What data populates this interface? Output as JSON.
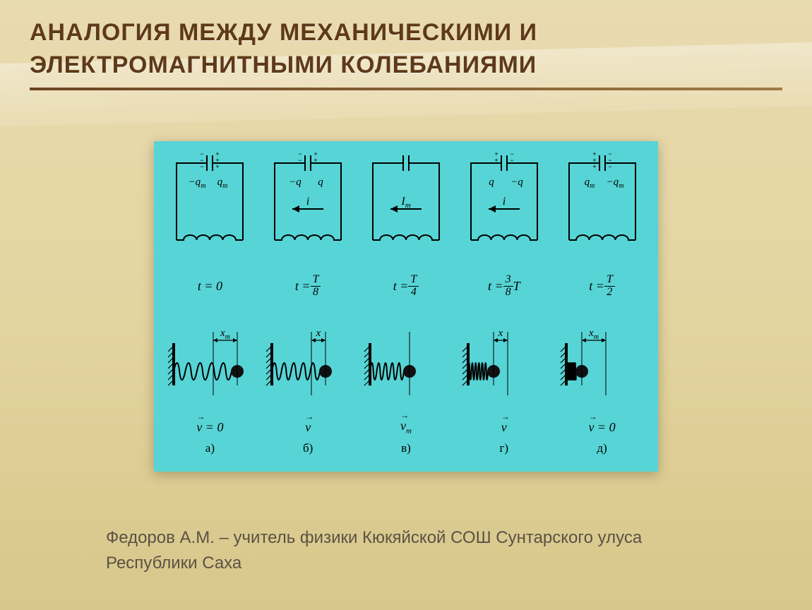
{
  "slide": {
    "title": "АНАЛОГИЯ МЕЖДУ МЕХАНИЧЕСКИМИ И ЭЛЕКТРОМАГНИТНЫМИ КОЛЕБАНИЯМИ",
    "footer": "Федоров А.М. – учитель физики Кюкяйской СОШ Сунтарского улуса Республики Саха"
  },
  "diagram": {
    "background_color": "#57d4d5",
    "stroke_color": "#000000",
    "stroke_width": 2,
    "font_family": "Georgia, serif",
    "columns": [
      {
        "letter": "а)",
        "circuit": {
          "left_charge": "−q",
          "left_sub": "m",
          "right_charge": "q",
          "right_sub": "m",
          "left_signs": "---",
          "right_signs": "+++",
          "current_label": "",
          "arrow": false
        },
        "time_label": {
          "prefix": "t = ",
          "plain": "0"
        },
        "spring": {
          "coils": 5,
          "extension": 34,
          "displacement_label": "x",
          "displacement_sub": "m"
        },
        "velocity_label": {
          "text": "v",
          "sub": "",
          "suffix": " = 0",
          "over_arrow": true
        }
      },
      {
        "letter": "б)",
        "circuit": {
          "left_charge": "−q",
          "left_sub": "",
          "right_charge": "q",
          "right_sub": "",
          "left_signs": "--",
          "right_signs": "++",
          "current_label": "i",
          "arrow": true
        },
        "time_label": {
          "prefix": "t = ",
          "frac_num": "T",
          "frac_den": "8"
        },
        "spring": {
          "coils": 5,
          "extension": 20,
          "displacement_label": "x",
          "displacement_sub": ""
        },
        "velocity_label": {
          "text": "v",
          "sub": "",
          "suffix": "",
          "over_arrow": true
        }
      },
      {
        "letter": "в)",
        "circuit": {
          "left_charge": "",
          "left_sub": "",
          "right_charge": "",
          "right_sub": "",
          "left_signs": "",
          "right_signs": "",
          "current_label": "I",
          "current_sub": "m",
          "arrow": true
        },
        "time_label": {
          "prefix": "t = ",
          "frac_num": "T",
          "frac_den": "4"
        },
        "spring": {
          "coils": 5,
          "extension": 0,
          "displacement_label": "",
          "displacement_sub": ""
        },
        "velocity_label": {
          "text": "v",
          "sub": "m",
          "suffix": "",
          "over_arrow": true
        }
      },
      {
        "letter": "г)",
        "circuit": {
          "left_charge": "q",
          "left_sub": "",
          "right_charge": "−q",
          "right_sub": "",
          "left_signs": "++",
          "right_signs": "--",
          "current_label": "i",
          "arrow": true
        },
        "time_label": {
          "prefix": "t = ",
          "frac_num": "3",
          "frac_den": "8",
          "trail": " T"
        },
        "spring": {
          "coils": 6,
          "extension": -20,
          "displacement_label": "x",
          "displacement_sub": ""
        },
        "velocity_label": {
          "text": "v",
          "sub": "",
          "suffix": "",
          "over_arrow": true
        }
      },
      {
        "letter": "д)",
        "circuit": {
          "left_charge": "q",
          "left_sub": "m",
          "right_charge": "−q",
          "right_sub": "m",
          "left_signs": "+++",
          "right_signs": "---",
          "current_label": "",
          "arrow": false
        },
        "time_label": {
          "prefix": "t = ",
          "frac_num": "T",
          "frac_den": "2"
        },
        "spring": {
          "coils": 7,
          "extension": -34,
          "displacement_label": "x",
          "displacement_sub": "m"
        },
        "velocity_label": {
          "text": "v",
          "sub": "",
          "suffix": " = 0",
          "over_arrow": true
        }
      }
    ]
  }
}
